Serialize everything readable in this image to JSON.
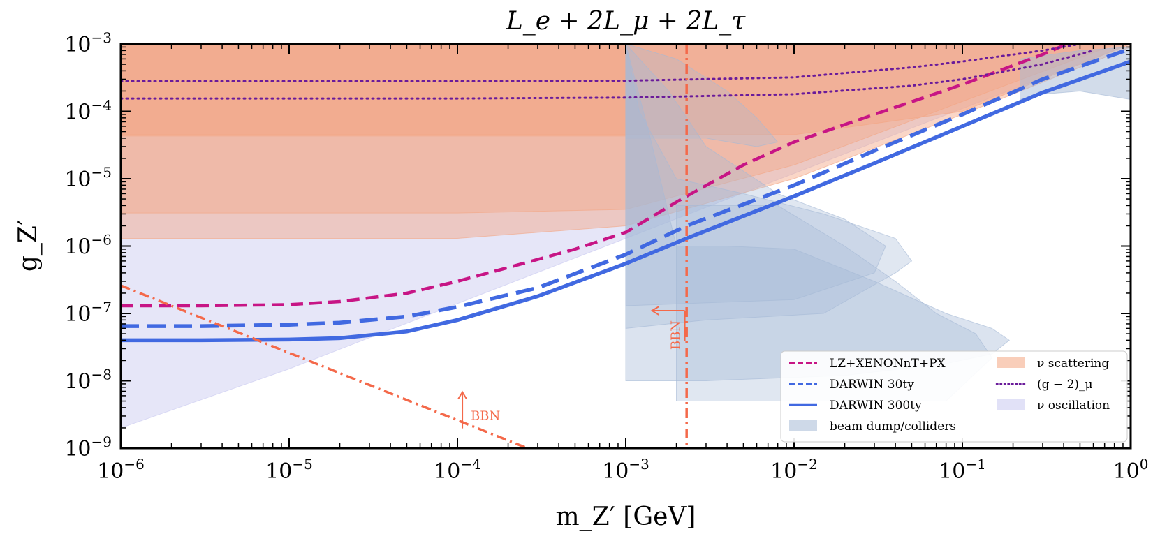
{
  "chart_data": {
    "type": "line",
    "title": "L_e + 2L_μ + 2L_τ",
    "xlabel": "m_Z′ [GeV]",
    "ylabel": "g_Z′",
    "xscale": "log",
    "yscale": "log",
    "xlim": [
      1e-06,
      1
    ],
    "ylim": [
      1e-09,
      0.001
    ],
    "x_ticks": [
      {
        "base": "10",
        "exp": "−6"
      },
      {
        "base": "10",
        "exp": "−5"
      },
      {
        "base": "10",
        "exp": "−4"
      },
      {
        "base": "10",
        "exp": "−3"
      },
      {
        "base": "10",
        "exp": "−2"
      },
      {
        "base": "10",
        "exp": "−1"
      },
      {
        "base": "10",
        "exp": "0"
      }
    ],
    "y_ticks": [
      {
        "base": "10",
        "exp": "−9"
      },
      {
        "base": "10",
        "exp": "−8"
      },
      {
        "base": "10",
        "exp": "−7"
      },
      {
        "base": "10",
        "exp": "−6"
      },
      {
        "base": "10",
        "exp": "−5"
      },
      {
        "base": "10",
        "exp": "−4"
      },
      {
        "base": "10",
        "exp": "−3"
      }
    ],
    "grid": false,
    "legend_position": "bottom-right",
    "series": [
      {
        "name": "LZ+XENONnT+PX",
        "style": "dashed",
        "color": "#c71585",
        "points": [
          [
            1e-06,
            1.3e-07
          ],
          [
            3e-06,
            1.3e-07
          ],
          [
            1e-05,
            1.35e-07
          ],
          [
            2e-05,
            1.5e-07
          ],
          [
            5e-05,
            2e-07
          ],
          [
            0.0001,
            3e-07
          ],
          [
            0.0002,
            4.8e-07
          ],
          [
            0.0005,
            9e-07
          ],
          [
            0.001,
            1.6e-06
          ],
          [
            0.002,
            4.5e-06
          ],
          [
            0.0023,
            5.5e-06
          ],
          [
            0.005,
            1.6e-05
          ],
          [
            0.01,
            3.5e-05
          ],
          [
            0.03,
            9e-05
          ],
          [
            0.1,
            0.00025
          ],
          [
            0.3,
            0.0007
          ],
          [
            0.42,
            0.001
          ]
        ]
      },
      {
        "name": "DARWIN 30ty",
        "style": "dashed",
        "color": "#4169e1",
        "points": [
          [
            1e-06,
            6.5e-08
          ],
          [
            3e-06,
            6.5e-08
          ],
          [
            1e-05,
            6.8e-08
          ],
          [
            2e-05,
            7.3e-08
          ],
          [
            5e-05,
            9e-08
          ],
          [
            0.0001,
            1.25e-07
          ],
          [
            0.0003,
            2.4e-07
          ],
          [
            0.001,
            7.5e-07
          ],
          [
            0.0023,
            2e-06
          ],
          [
            0.01,
            8e-06
          ],
          [
            0.03,
            2.6e-05
          ],
          [
            0.1,
            9e-05
          ],
          [
            0.3,
            0.0003
          ],
          [
            1,
            0.00085
          ]
        ]
      },
      {
        "name": "DARWIN 300ty",
        "style": "solid",
        "color": "#4169e1",
        "points": [
          [
            1e-06,
            4e-08
          ],
          [
            3e-06,
            4e-08
          ],
          [
            1e-05,
            4.1e-08
          ],
          [
            2e-05,
            4.3e-08
          ],
          [
            5e-05,
            5.4e-08
          ],
          [
            0.0001,
            8e-08
          ],
          [
            0.0003,
            1.8e-07
          ],
          [
            0.001,
            5.5e-07
          ],
          [
            0.0023,
            1.3e-06
          ],
          [
            0.01,
            5.5e-06
          ],
          [
            0.03,
            1.7e-05
          ],
          [
            0.1,
            6e-05
          ],
          [
            0.3,
            0.00019
          ],
          [
            1,
            0.00055
          ]
        ]
      },
      {
        "name": "(g − 2)_μ",
        "style": "dotted",
        "color": "#6a1b9a",
        "points_upper": [
          [
            1e-06,
            0.00028
          ],
          [
            0.0001,
            0.00028
          ],
          [
            0.001,
            0.000285
          ],
          [
            0.01,
            0.00032
          ],
          [
            0.05,
            0.00045
          ],
          [
            0.1,
            0.00055
          ],
          [
            0.3,
            0.0008
          ],
          [
            0.5,
            0.001
          ]
        ],
        "points_lower": [
          [
            1e-06,
            0.000155
          ],
          [
            0.0001,
            0.000155
          ],
          [
            0.001,
            0.00016
          ],
          [
            0.01,
            0.00018
          ],
          [
            0.05,
            0.00024
          ],
          [
            0.1,
            0.0003
          ],
          [
            0.3,
            0.0005
          ],
          [
            0.6,
            0.0008
          ]
        ]
      }
    ],
    "regions": [
      {
        "name": "ν scattering",
        "color": "#f4a582"
      },
      {
        "name": "ν oscillation",
        "color": "#c8c8f0"
      },
      {
        "name": "beam dump/colliders",
        "color": "#a5b9d6"
      }
    ],
    "bbn_lines": [
      {
        "type": "diagonal",
        "color": "#f4694a",
        "from": [
          1e-06,
          2.6e-07
        ],
        "to": [
          0.00026,
          1e-09
        ]
      },
      {
        "type": "vertical",
        "color": "#f4694a",
        "x": 0.0023
      }
    ],
    "annotations": [
      {
        "text": "BBN",
        "near": "diagonal",
        "at": [
          0.00012,
          2.5e-09
        ]
      },
      {
        "text": "BBN",
        "near": "vertical",
        "at": [
          0.002,
          5e-08
        ]
      }
    ]
  }
}
